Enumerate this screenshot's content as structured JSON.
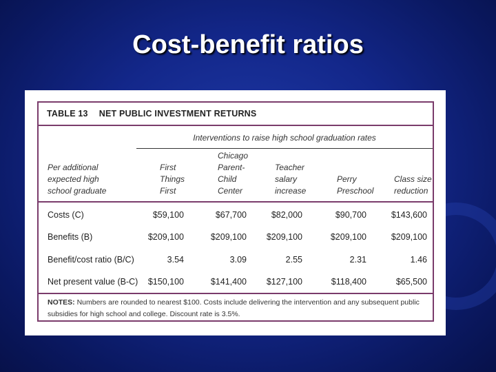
{
  "slide": {
    "title": "Cost-benefit ratios"
  },
  "table": {
    "number": "TABLE 13",
    "title": "NET PUBLIC INVESTMENT RETURNS",
    "interventions_heading": "Interventions to raise high school graduation rates",
    "row_header": [
      "Per additional",
      "expected high",
      "school graduate"
    ],
    "columns": [
      {
        "lines": [
          "First",
          "Things",
          "First"
        ]
      },
      {
        "lines": [
          "Chicago",
          "Parent-",
          "Child",
          "Center"
        ]
      },
      {
        "lines": [
          "Teacher",
          "salary",
          "increase"
        ]
      },
      {
        "lines": [
          "Perry",
          "Preschool"
        ]
      },
      {
        "lines": [
          "Class size",
          "reduction"
        ]
      }
    ],
    "rows": [
      {
        "label": "Costs (C)",
        "values": [
          "$59,100",
          "$67,700",
          "$82,000",
          "$90,700",
          "$143,600"
        ]
      },
      {
        "label": "Benefits (B)",
        "values": [
          "$209,100",
          "$209,100",
          "$209,100",
          "$209,100",
          "$209,100"
        ]
      },
      {
        "label": "Benefit/cost ratio (B/C)",
        "values": [
          "3.54",
          "3.09",
          "2.55",
          "2.31",
          "1.46"
        ]
      },
      {
        "label": "Net present value (B-C)",
        "values": [
          "$150,100",
          "$141,400",
          "$127,100",
          "$118,400",
          "$65,500"
        ]
      }
    ],
    "notes_label": "NOTES:",
    "notes_text": " Numbers are rounded to nearest $100. Costs include delivering the intervention and any subsequent public subsidies for high school and college. Discount rate is 3.5%."
  }
}
